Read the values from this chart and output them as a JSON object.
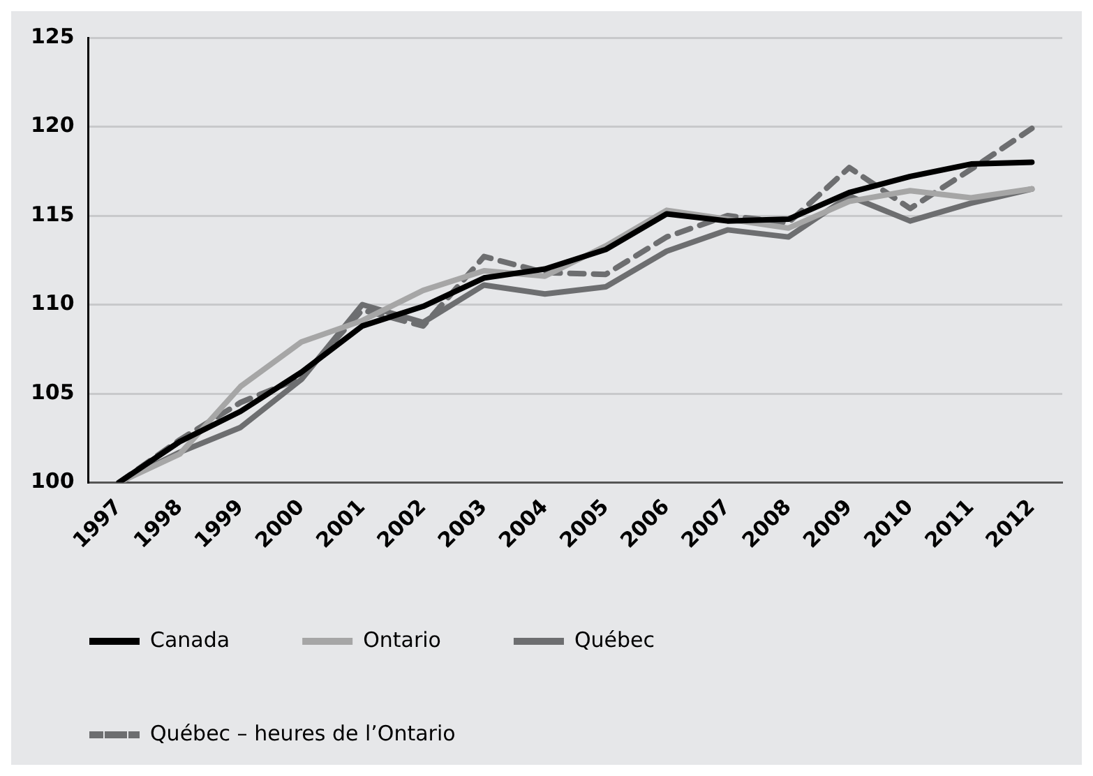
{
  "chart_data": {
    "type": "line",
    "categories": [
      "1997",
      "1998",
      "1999",
      "2000",
      "2001",
      "2002",
      "2003",
      "2004",
      "2005",
      "2006",
      "2007",
      "2008",
      "2009",
      "2010",
      "2011",
      "2012"
    ],
    "series": [
      {
        "name": "Canada",
        "color": "#000000",
        "values": [
          100,
          102.3,
          104,
          106.2,
          108.8,
          109.9,
          111.5,
          112,
          113.1,
          115.1,
          114.7,
          114.8,
          116.3,
          117.2,
          117.9,
          118
        ]
      },
      {
        "name": "Ontario",
        "color": "#a6a6a6",
        "values": [
          100,
          101.6,
          105.4,
          107.9,
          109.1,
          110.8,
          111.9,
          111.6,
          113.3,
          115.3,
          114.8,
          114.3,
          115.8,
          116.4,
          116,
          116.5
        ]
      },
      {
        "name": "Québec",
        "color": "#6d6e70",
        "values": [
          100,
          101.7,
          103.1,
          105.8,
          110,
          109,
          111.1,
          110.6,
          111,
          113,
          114.2,
          113.8,
          116.1,
          114.7,
          115.7,
          116.5
        ]
      },
      {
        "name": "Québec – heures de l’Ontario",
        "color": "#6d6e70",
        "line_style": "dashed",
        "values": [
          100,
          102.4,
          104.5,
          105.9,
          109.7,
          108.8,
          112.7,
          111.8,
          111.7,
          113.8,
          115,
          114.6,
          117.7,
          115.4,
          117.6,
          119.9
        ]
      }
    ],
    "ylim": [
      100,
      125
    ],
    "yticks": [
      100,
      105,
      110,
      115,
      120,
      125
    ],
    "grid": "y",
    "legend": "bottom",
    "marker": "none",
    "line_style": "solid"
  }
}
